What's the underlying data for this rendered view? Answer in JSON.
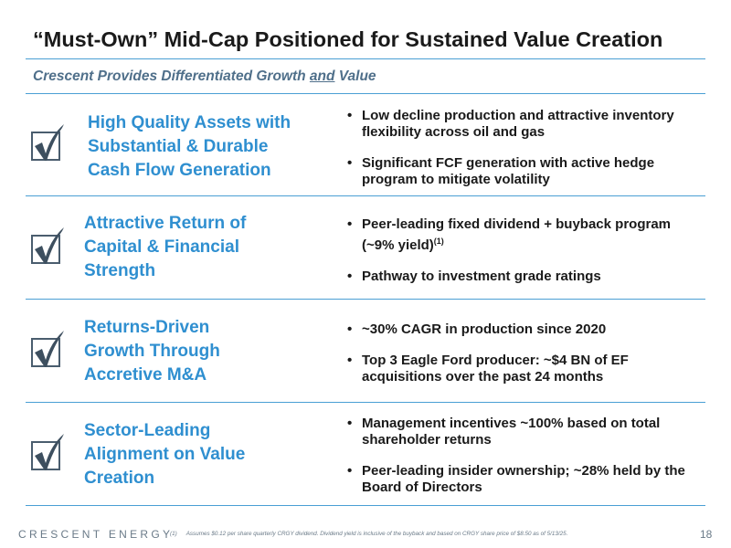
{
  "slide": {
    "title": "“Must-Own” Mid-Cap Positioned for Sustained Value Creation",
    "subtitle_before": "Crescent Provides Differentiated Growth ",
    "subtitle_emphasis": "and",
    "subtitle_after": " Value"
  },
  "rows": [
    {
      "heading_lines": [
        "High Quality Assets with",
        "Substantial & Durable",
        "Cash Flow Generation"
      ],
      "bullets": [
        {
          "text": "Low decline production and attractive inventory flexibility across oil and gas",
          "sup": ""
        },
        {
          "text": "Significant FCF generation with active hedge program to mitigate volatility",
          "sup": ""
        }
      ]
    },
    {
      "heading_lines": [
        "Attractive Return of",
        "Capital & Financial",
        "Strength"
      ],
      "bullets": [
        {
          "text": "Peer-leading fixed dividend + buyback program (~9% yield)",
          "sup": "(1)"
        },
        {
          "text": "Pathway to investment grade ratings",
          "sup": ""
        }
      ]
    },
    {
      "heading_lines": [
        "Returns-Driven",
        "Growth Through",
        "Accretive M&A"
      ],
      "bullets": [
        {
          "text": "~30% CAGR in production since 2020",
          "sup": ""
        },
        {
          "text": "Top 3 Eagle Ford producer: ~$4 BN of EF acquisitions over the past 24 months",
          "sup": ""
        }
      ]
    },
    {
      "heading_lines": [
        "Sector-Leading",
        "Alignment on Value",
        "Creation"
      ],
      "bullets": [
        {
          "text": "Management incentives ~100% based on total shareholder returns",
          "sup": ""
        },
        {
          "text": "Peer-leading insider ownership; ~28% held by the Board of Directors",
          "sup": ""
        }
      ]
    }
  ],
  "footer": {
    "logo_text": "CRESCENT ENERGY",
    "footnote_number": "(1)",
    "footnote_text": "Assumes $0.12 per share quarterly CRGY dividend. Dividend yield is inclusive of the buyback and based on CRGY share price of $8.50 as of 5/13/25.",
    "page_number": "18"
  },
  "colors": {
    "accent_blue": "#2f8fd0",
    "rule_blue": "#4a9fd4",
    "subtitle_slate": "#4f6f8a",
    "checkmark_dark": "#3d4f5f"
  },
  "icons": [
    "checkbox-checked-icon"
  ]
}
